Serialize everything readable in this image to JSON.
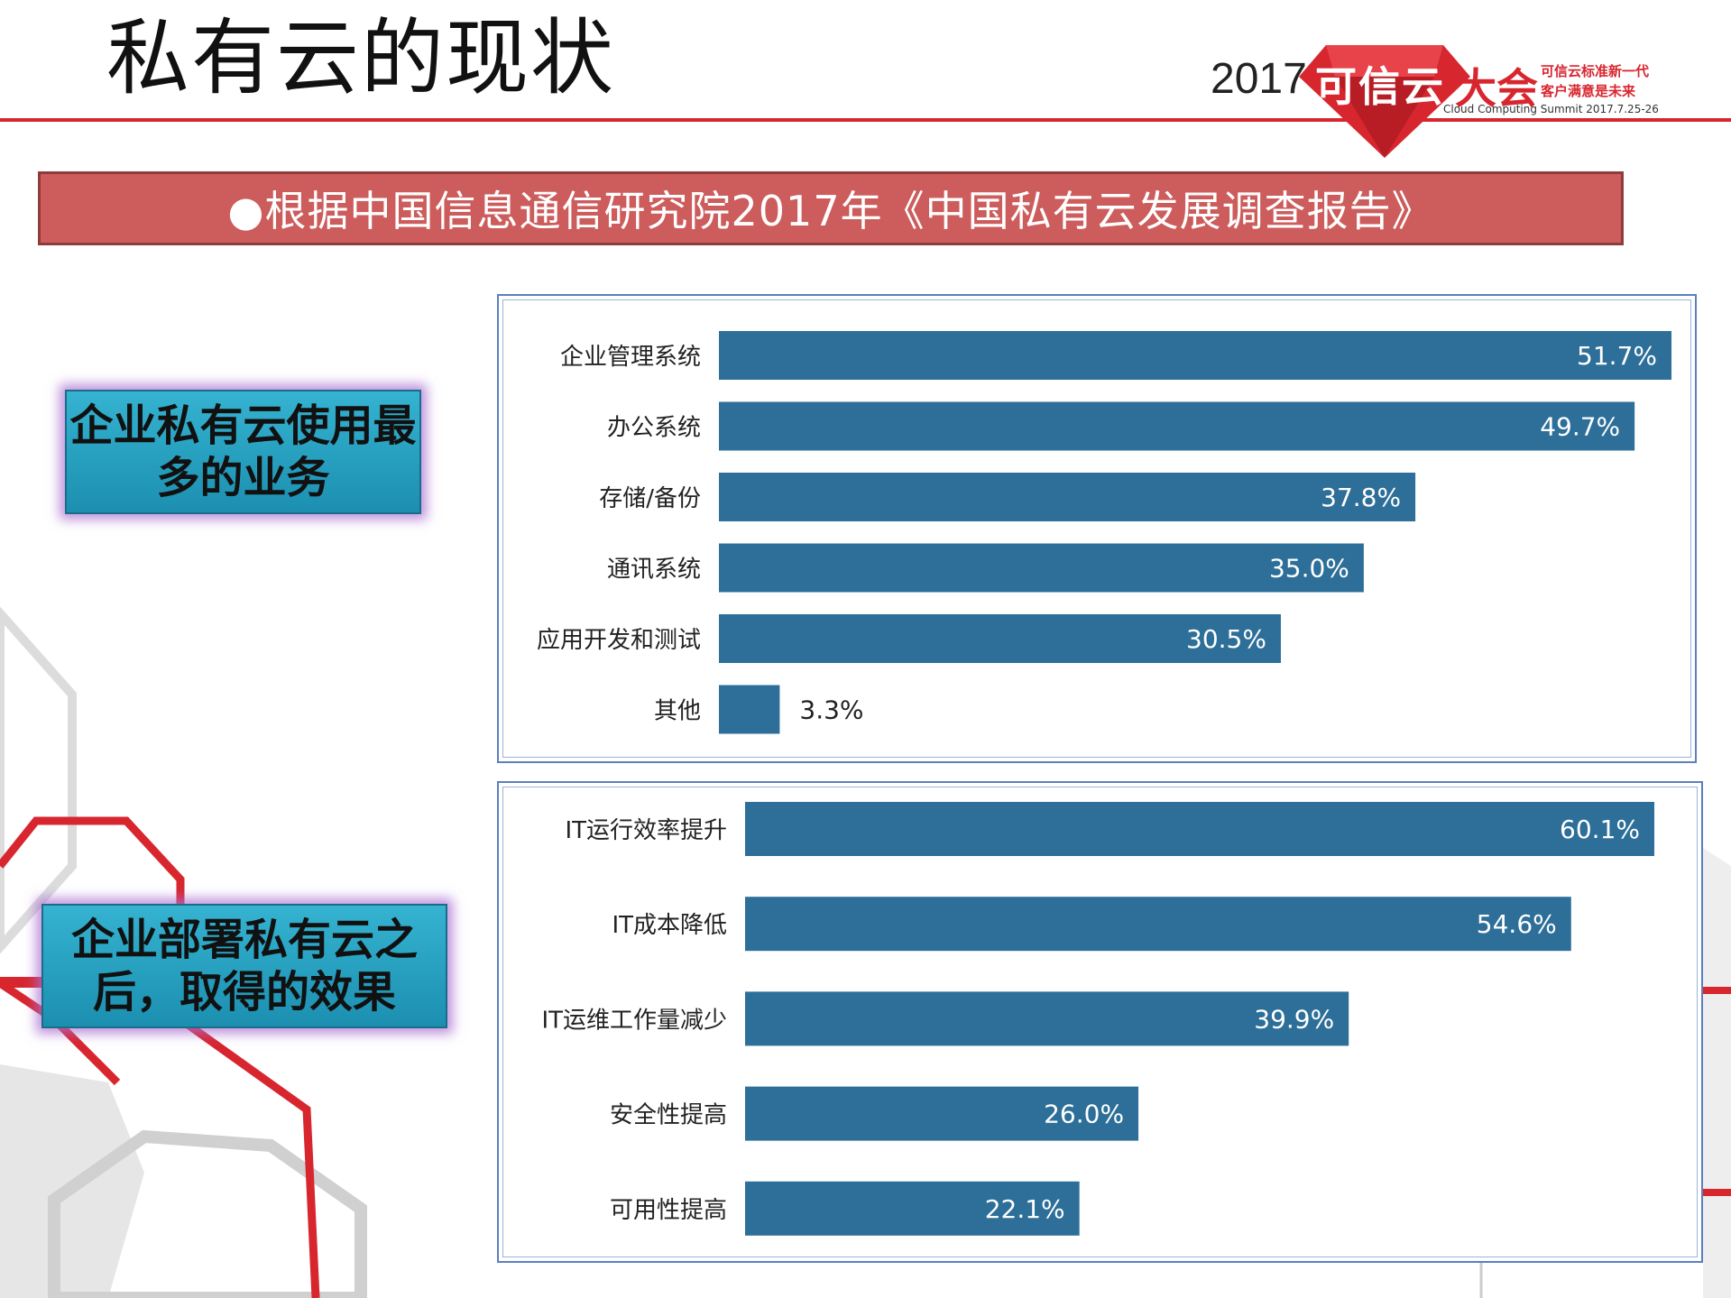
{
  "title": "私有云的现状",
  "logo": {
    "year": "2017",
    "name": "可信云",
    "suffix": "大会",
    "slogan_line1": "可信云标准新一代",
    "slogan_line2": "客户满意是未来",
    "subtitle": "Cloud Computing Summit 2017.7.25-26",
    "brand_color": "#d8262f"
  },
  "banner": {
    "text": "●根据中国信息通信研究院2017年《中国私有云发展调查报告》"
  },
  "tags": {
    "usage": "企业私有云使用最多的业务",
    "effects": "企业部署私有云之后，取得的效果"
  },
  "chart_data": [
    {
      "type": "bar",
      "orientation": "horizontal",
      "categories": [
        "企业管理系统",
        "办公系统",
        "存储/备份",
        "通讯系统",
        "应用开发和测试",
        "其他"
      ],
      "values": [
        51.7,
        49.7,
        37.8,
        35.0,
        30.5,
        3.3
      ],
      "labels": [
        "51.7%",
        "49.7%",
        "37.8%",
        "35.0%",
        "30.5%",
        "3.3%"
      ],
      "unit": "%",
      "bar_color": "#2d6f98"
    },
    {
      "type": "bar",
      "orientation": "horizontal",
      "categories": [
        "IT运行效率提升",
        "IT成本降低",
        "IT运维工作量减少",
        "安全性提高",
        "可用性提高"
      ],
      "values": [
        60.1,
        54.6,
        39.9,
        26.0,
        22.1
      ],
      "labels": [
        "60.1%",
        "54.6%",
        "39.9%",
        "26.0%",
        "22.1%"
      ],
      "unit": "%",
      "bar_color": "#2d6f98"
    }
  ]
}
